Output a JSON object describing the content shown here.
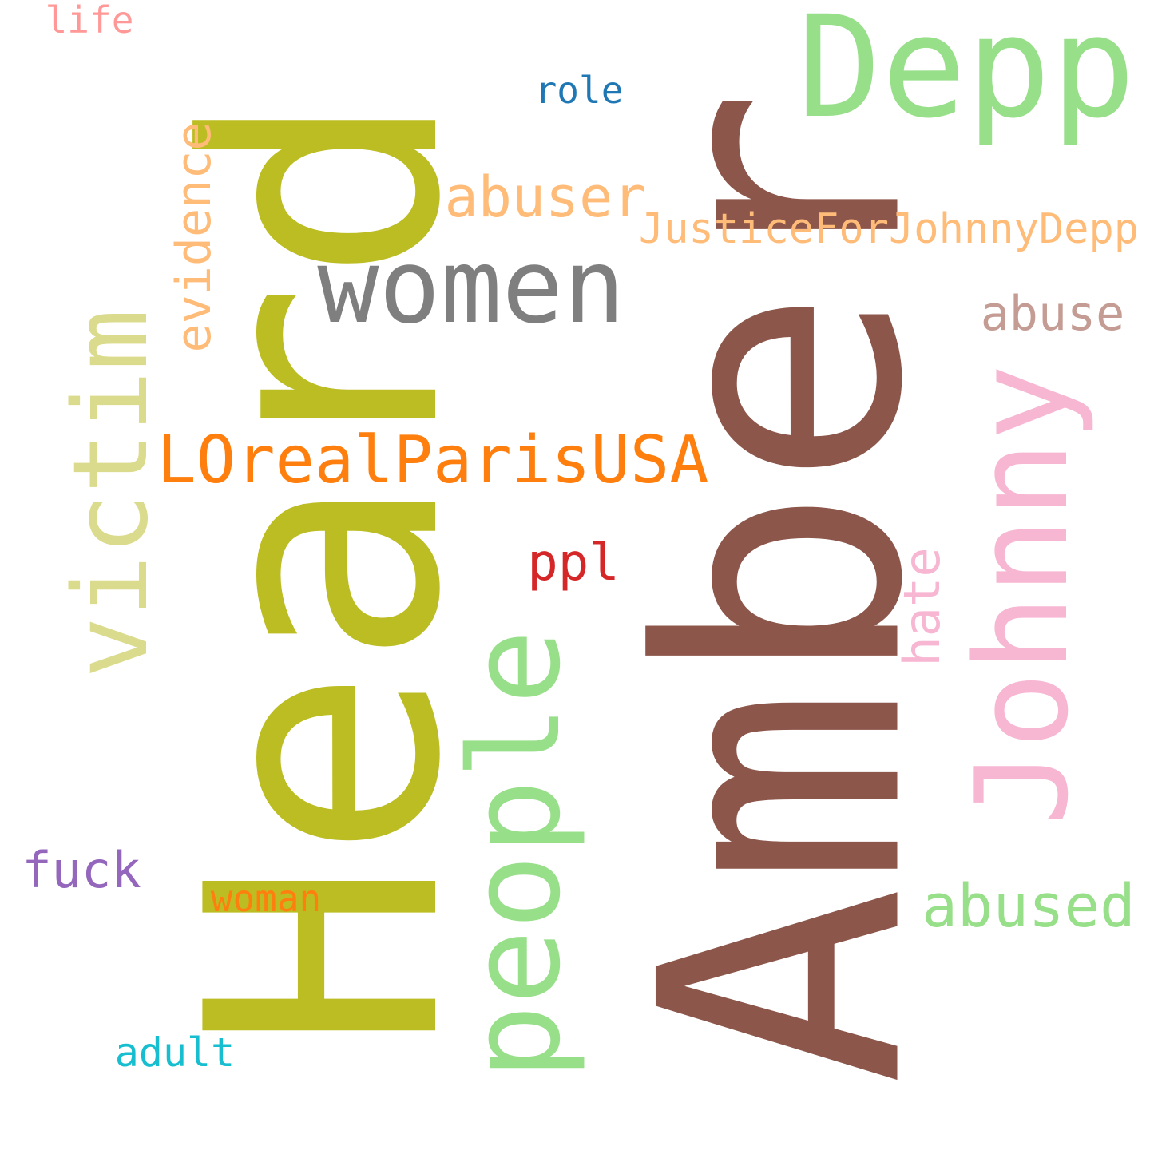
{
  "words": [
    {
      "text": "Amber",
      "color": "#8c564b"
    },
    {
      "text": "Heard",
      "color": "#bcbd22"
    },
    {
      "text": "Depp",
      "color": "#98df8a"
    },
    {
      "text": "women",
      "color": "#7f7f7f"
    },
    {
      "text": "Johnny",
      "color": "#f7b6d2"
    },
    {
      "text": "people",
      "color": "#98df8a"
    },
    {
      "text": "victim",
      "color": "#dbdb8d"
    },
    {
      "text": "LOrealParisUSA",
      "color": "#ff7f0e"
    },
    {
      "text": "evidence",
      "color": "#ffbb78"
    },
    {
      "text": "abuser",
      "color": "#ffbb78"
    },
    {
      "text": "JusticeForJohnnyDepp",
      "color": "#ffbb78"
    },
    {
      "text": "abuse",
      "color": "#c49c94"
    },
    {
      "text": "abused",
      "color": "#98df8a"
    },
    {
      "text": "hate",
      "color": "#f7b6d2"
    },
    {
      "text": "ppl",
      "color": "#d62728"
    },
    {
      "text": "role",
      "color": "#1f77b4"
    },
    {
      "text": "life",
      "color": "#ff9896"
    },
    {
      "text": "fuck",
      "color": "#9467bd"
    },
    {
      "text": "woman",
      "color": "#ff7f0e"
    },
    {
      "text": "adult",
      "color": "#17becf"
    }
  ]
}
